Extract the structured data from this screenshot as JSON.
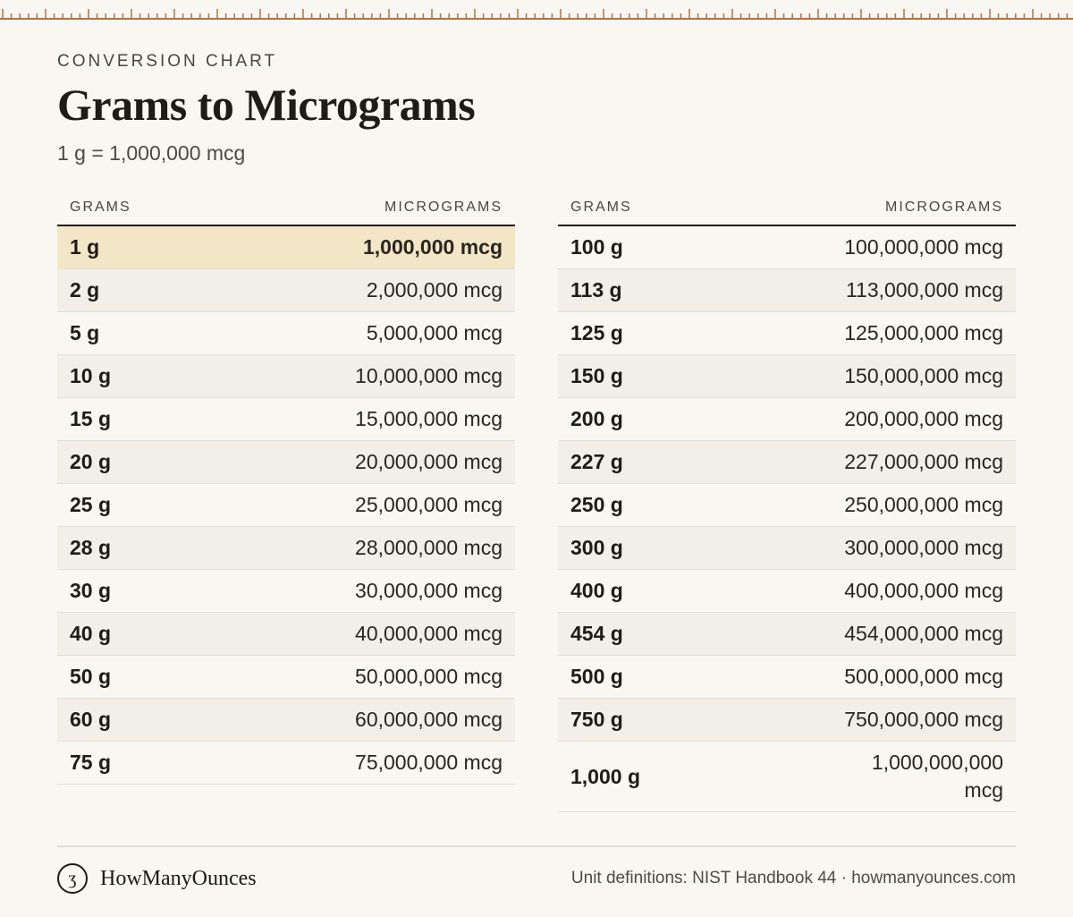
{
  "header": {
    "eyebrow": "CONVERSION CHART",
    "title": "Grams to Micrograms",
    "subtitle": "1 g = 1,000,000 mcg"
  },
  "columns": {
    "grams": "GRAMS",
    "micrograms": "MICROGRAMS"
  },
  "left_table": [
    {
      "g": "1 g",
      "mcg": "1,000,000 mcg",
      "highlight": true
    },
    {
      "g": "2 g",
      "mcg": "2,000,000 mcg"
    },
    {
      "g": "5 g",
      "mcg": "5,000,000 mcg"
    },
    {
      "g": "10 g",
      "mcg": "10,000,000 mcg"
    },
    {
      "g": "15 g",
      "mcg": "15,000,000 mcg"
    },
    {
      "g": "20 g",
      "mcg": "20,000,000 mcg"
    },
    {
      "g": "25 g",
      "mcg": "25,000,000 mcg"
    },
    {
      "g": "28 g",
      "mcg": "28,000,000 mcg"
    },
    {
      "g": "30 g",
      "mcg": "30,000,000 mcg"
    },
    {
      "g": "40 g",
      "mcg": "40,000,000 mcg"
    },
    {
      "g": "50 g",
      "mcg": "50,000,000 mcg"
    },
    {
      "g": "60 g",
      "mcg": "60,000,000 mcg"
    },
    {
      "g": "75 g",
      "mcg": "75,000,000 mcg"
    }
  ],
  "right_table": [
    {
      "g": "100 g",
      "mcg": "100,000,000 mcg"
    },
    {
      "g": "113 g",
      "mcg": "113,000,000 mcg"
    },
    {
      "g": "125 g",
      "mcg": "125,000,000 mcg"
    },
    {
      "g": "150 g",
      "mcg": "150,000,000 mcg"
    },
    {
      "g": "200 g",
      "mcg": "200,000,000 mcg"
    },
    {
      "g": "227 g",
      "mcg": "227,000,000 mcg"
    },
    {
      "g": "250 g",
      "mcg": "250,000,000 mcg"
    },
    {
      "g": "300 g",
      "mcg": "300,000,000 mcg"
    },
    {
      "g": "400 g",
      "mcg": "400,000,000 mcg"
    },
    {
      "g": "454 g",
      "mcg": "454,000,000 mcg"
    },
    {
      "g": "500 g",
      "mcg": "500,000,000 mcg"
    },
    {
      "g": "750 g",
      "mcg": "750,000,000 mcg"
    },
    {
      "g": "1,000 g",
      "mcg": "1,000,000,000 mcg",
      "tall": true
    }
  ],
  "footer": {
    "logo_glyph": "ʒ",
    "brand": "HowManyOunces",
    "source": "Unit definitions: NIST Handbook 44 · howmanyounces.com"
  },
  "colors": {
    "accent": "#b8703c",
    "highlight": "#f3e6c6",
    "background": "#f9f7f2"
  }
}
